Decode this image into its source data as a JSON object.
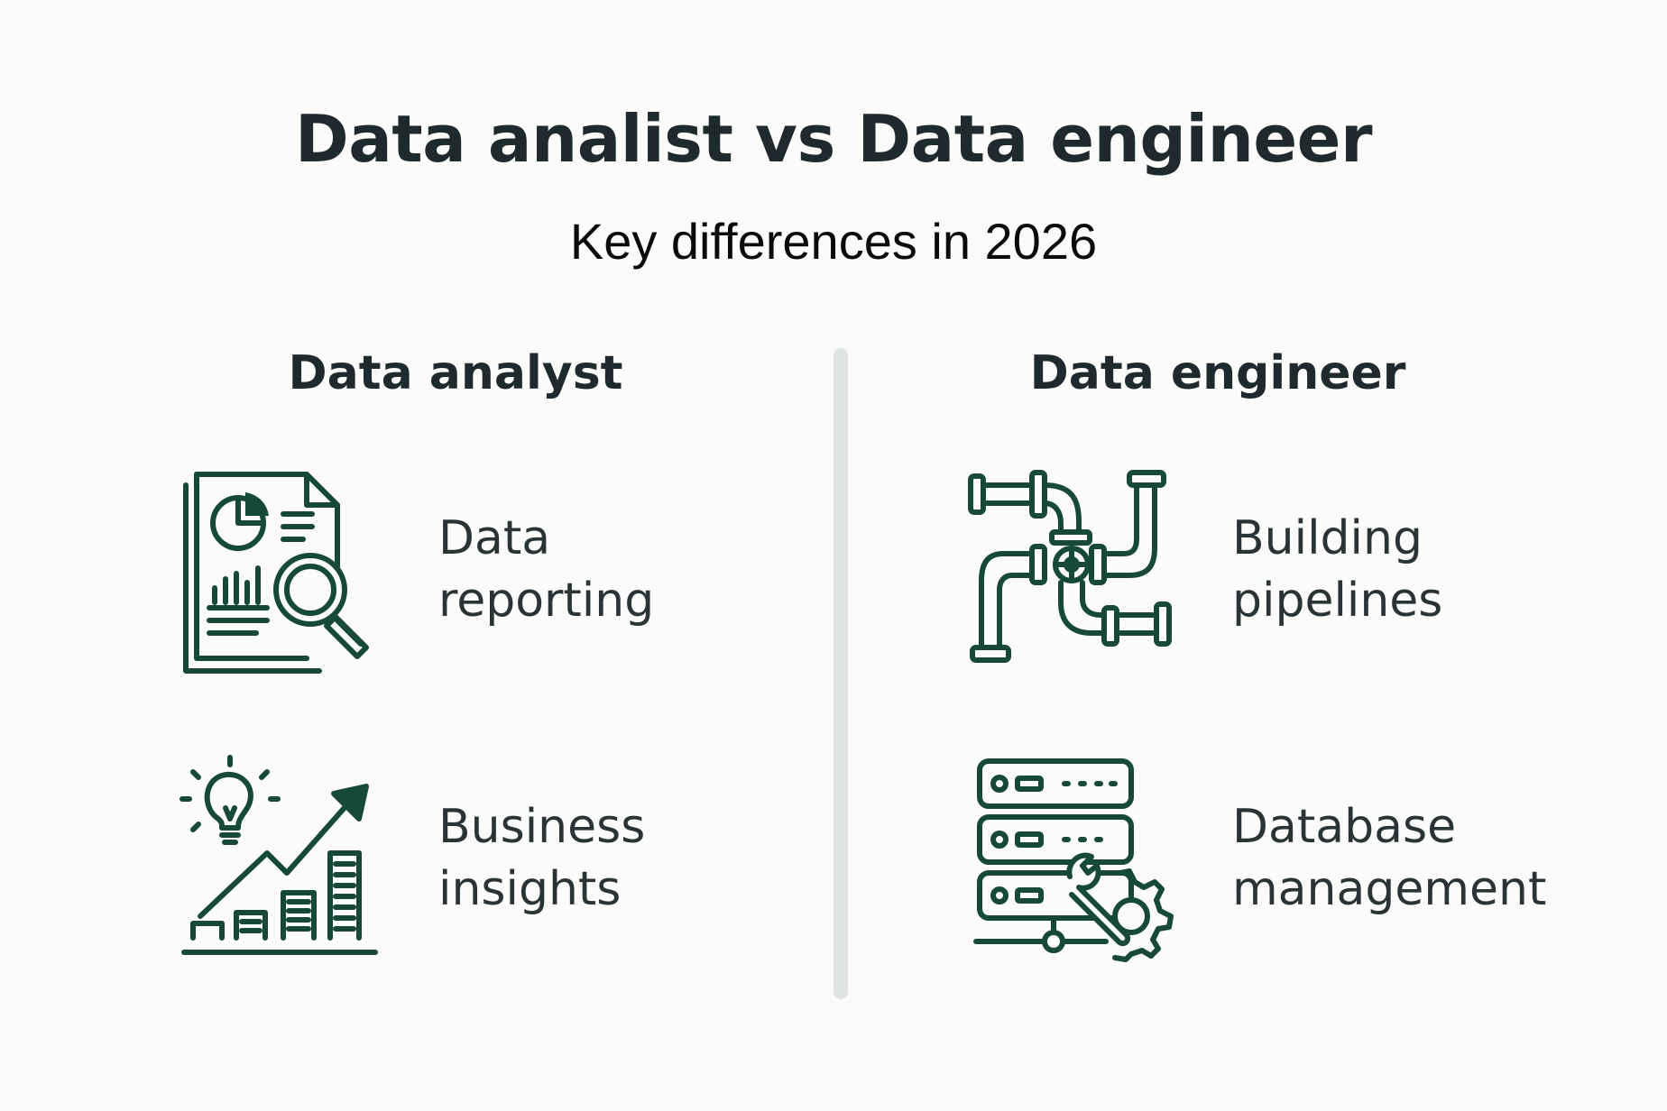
{
  "title": "Data analist vs Data engineer",
  "subtitle": "Key differences in 2026",
  "colors": {
    "icon_stroke": "#17493b",
    "text_dark": "#1f2a2e",
    "divider": "#dfe3e4",
    "background": "#fbfbfa"
  },
  "columns": [
    {
      "heading": "Data analyst",
      "items": [
        {
          "icon": "report-magnifier-icon",
          "line1": "Data",
          "line2": "reporting"
        },
        {
          "icon": "lightbulb-growth-chart-icon",
          "line1": "Business",
          "line2": "insights"
        }
      ]
    },
    {
      "heading": "Data engineer",
      "items": [
        {
          "icon": "pipes-valve-icon",
          "line1": "Building",
          "line2": "pipelines"
        },
        {
          "icon": "server-wrench-gear-icon",
          "line1": "Database",
          "line2": "management"
        }
      ]
    }
  ]
}
